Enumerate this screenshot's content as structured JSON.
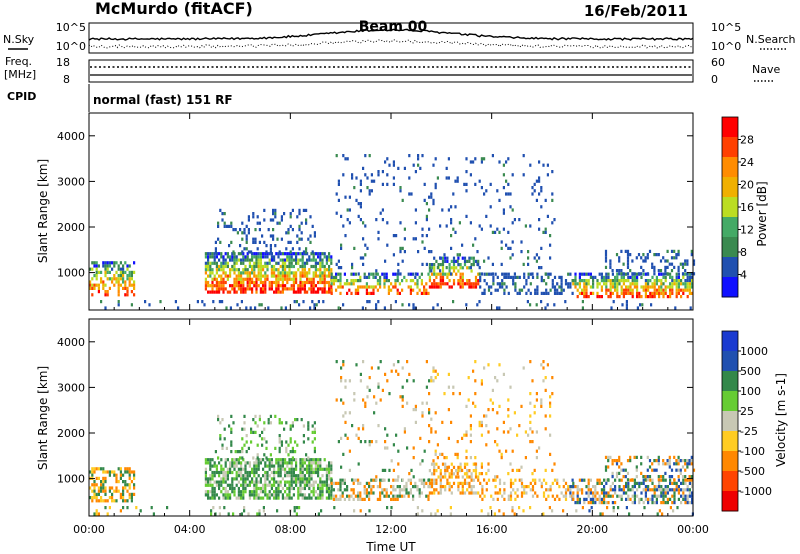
{
  "header": {
    "station": "McMurdo (fitACF)",
    "beam": "Beam 00",
    "date": "16/Feb/2011"
  },
  "noise_panel": {
    "left_label": "N.Sky",
    "right_label": "N.Search",
    "left_ticks": [
      "10^5",
      "10^0"
    ],
    "right_ticks": [
      "10^5",
      "10^0"
    ]
  },
  "freq_panel": {
    "left_label_1": "Freq.",
    "left_label_2": "[MHz]",
    "right_label": "Nave",
    "left_ticks": [
      "18",
      "8"
    ],
    "right_ticks": [
      "60",
      "0"
    ]
  },
  "cpid_panel": {
    "label": "CPID",
    "mode_text": "normal (fast) 151 RF"
  },
  "colors": {
    "power": [
      "#1010ff",
      "#2050b0",
      "#3a8a50",
      "#44aa66",
      "#bbdd22",
      "#f0b000",
      "#ff8c00",
      "#ff4000",
      "#ff0000"
    ],
    "velocity": [
      "#ee0000",
      "#ff4400",
      "#ff8800",
      "#ffcc22",
      "#c8c8b4",
      "#66cc33",
      "#33884a",
      "#2050b0",
      "#1a3ad0"
    ]
  },
  "chart_data": [
    {
      "type": "heatmap",
      "parameter": "power",
      "ylabel": "Slant Range [km]",
      "colorbar_label": "Power [dB]",
      "colorbar_ticks": [
        "28",
        "24",
        "20",
        "16",
        "12",
        "8",
        "4"
      ],
      "yticks": [
        "4000",
        "3000",
        "2000",
        "1000"
      ],
      "ylim": [
        180,
        4500
      ],
      "xlim": [
        0,
        24
      ],
      "clim": [
        0,
        30
      ]
    },
    {
      "type": "heatmap",
      "parameter": "velocity",
      "ylabel": "Slant Range [km]",
      "xlabel": "Time UT",
      "colorbar_label": "Velocity [m s-1]",
      "colorbar_ticks": [
        "1000",
        "500",
        "100",
        "25",
        "-25",
        "-100",
        "-500",
        "-1000"
      ],
      "yticks": [
        "4000",
        "3000",
        "2000",
        "1000"
      ],
      "xticks": [
        "00:00",
        "04:00",
        "08:00",
        "12:00",
        "16:00",
        "20:00",
        "00:00"
      ],
      "ylim": [
        180,
        4500
      ],
      "xlim": [
        0,
        24
      ],
      "clim": [
        -1000,
        1000
      ]
    }
  ]
}
